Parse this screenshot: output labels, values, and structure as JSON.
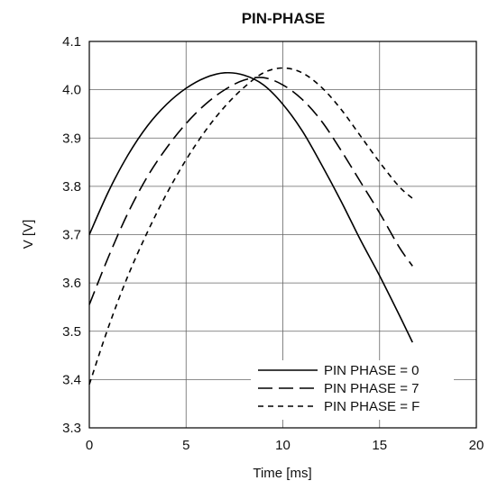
{
  "chart_data": {
    "type": "line",
    "title": "PIN-PHASE",
    "xlabel": "Time [ms]",
    "ylabel": "V [V]",
    "xlim": [
      0,
      20
    ],
    "ylim": [
      3.3,
      4.1
    ],
    "xticks": [
      0,
      5,
      10,
      15,
      20
    ],
    "yticks": [
      3.3,
      3.4,
      3.5,
      3.6,
      3.7,
      3.8,
      3.9,
      4.0,
      4.1
    ],
    "xtick_labels": [
      "0",
      "5",
      "10",
      "15",
      "20"
    ],
    "ytick_labels": [
      "3.3",
      "3.4",
      "3.5",
      "3.6",
      "3.7",
      "3.8",
      "3.9",
      "4.0",
      "4.1"
    ],
    "grid": true,
    "legend_position": "bottom-right",
    "series": [
      {
        "name": "PIN PHASE = 0",
        "style": "solid",
        "color": "#000000",
        "x": [
          0,
          1,
          2,
          3,
          4,
          5,
          6,
          7,
          8,
          9,
          10,
          11,
          12,
          13,
          14,
          15,
          16,
          16.7
        ],
        "y": [
          3.7,
          3.79,
          3.865,
          3.925,
          3.97,
          4.003,
          4.025,
          4.035,
          4.03,
          4.01,
          3.97,
          3.915,
          3.845,
          3.77,
          3.69,
          3.615,
          3.535,
          3.477
        ]
      },
      {
        "name": "PIN PHASE = 7",
        "style": "dashed",
        "color": "#000000",
        "x": [
          0,
          1,
          2,
          3,
          4,
          5,
          6,
          7,
          8,
          9,
          10,
          11,
          12,
          13,
          14,
          15,
          16,
          16.7
        ],
        "y": [
          3.555,
          3.655,
          3.745,
          3.82,
          3.88,
          3.93,
          3.97,
          4.0,
          4.02,
          4.025,
          4.01,
          3.98,
          3.935,
          3.875,
          3.81,
          3.745,
          3.675,
          3.635
        ]
      },
      {
        "name": "PIN PHASE = F",
        "style": "dotted",
        "color": "#000000",
        "x": [
          0,
          1,
          2,
          3,
          4,
          5,
          6,
          7,
          8,
          9,
          10,
          11,
          12,
          13,
          14,
          15,
          16,
          16.7
        ],
        "y": [
          3.39,
          3.51,
          3.615,
          3.705,
          3.785,
          3.855,
          3.915,
          3.965,
          4.005,
          4.035,
          4.045,
          4.035,
          4.005,
          3.96,
          3.905,
          3.85,
          3.8,
          3.775
        ]
      }
    ]
  }
}
